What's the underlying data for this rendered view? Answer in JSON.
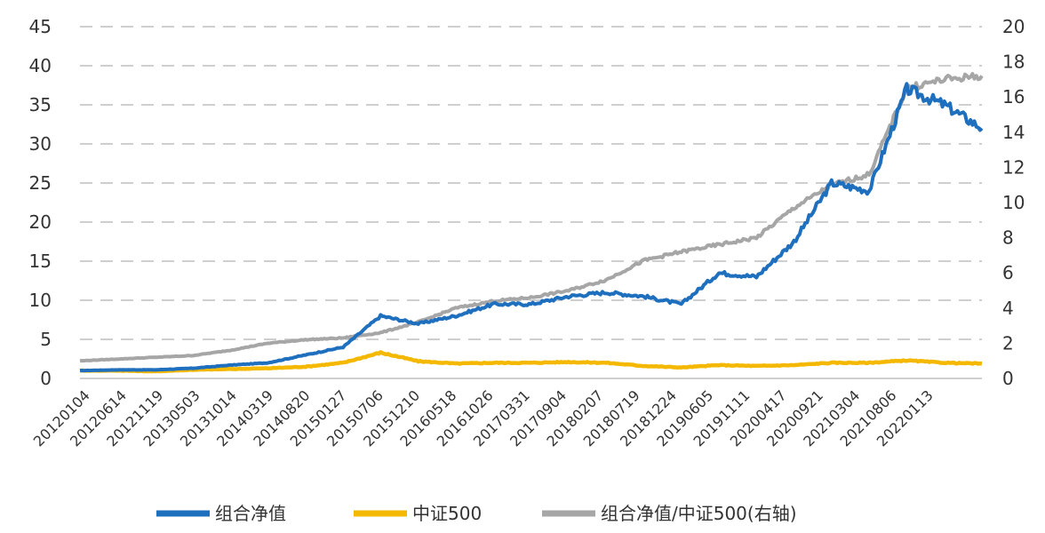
{
  "chart_data": {
    "type": "line",
    "title": "",
    "xlabel": "",
    "ylabel": "",
    "y2label": "",
    "ylim": [
      0,
      45
    ],
    "y2lim": [
      0,
      20
    ],
    "y_ticks": [
      0,
      5,
      10,
      15,
      20,
      25,
      30,
      35,
      40,
      45
    ],
    "y2_ticks": [
      0,
      2,
      4,
      6,
      8,
      10,
      12,
      14,
      16,
      18,
      20
    ],
    "grid": "horizontal dashed",
    "legend_position": "bottom",
    "x_tick_labels": [
      "20120104",
      "20120614",
      "20121119",
      "20130503",
      "20131014",
      "20140319",
      "20140820",
      "20150127",
      "20150706",
      "20151210",
      "20160518",
      "20161026",
      "20170331",
      "20170904",
      "20180207",
      "20180719",
      "20181224",
      "20190605",
      "20191111",
      "20200417",
      "20200921",
      "20210304",
      "20210806",
      "20220113"
    ],
    "x": [
      "20120104",
      "20120614",
      "20121119",
      "20130503",
      "20131014",
      "20140319",
      "20140820",
      "20150127",
      "20150706",
      "20151210",
      "20160518",
      "20161026",
      "20170331",
      "20170904",
      "20180207",
      "20180719",
      "20181224",
      "20190605",
      "20191111",
      "20200417",
      "20200921",
      "20210304",
      "20210806",
      "20220113",
      "20220420"
    ],
    "series": [
      {
        "name": "组合净值",
        "axis": "left",
        "color": "#1f6fbf",
        "values": [
          1.0,
          1.1,
          1.1,
          1.3,
          1.7,
          2.0,
          3.0,
          4.0,
          8.0,
          7.0,
          8.0,
          9.5,
          9.5,
          10.5,
          11.0,
          10.5,
          9.5,
          13.5,
          13.0,
          17.5,
          25.0,
          24.0,
          37.0,
          35.0,
          32.0
        ]
      },
      {
        "name": "中证500",
        "axis": "left",
        "color": "#f5b800",
        "values": [
          1.0,
          1.0,
          0.9,
          1.1,
          1.2,
          1.3,
          1.5,
          2.0,
          3.3,
          2.2,
          1.9,
          2.0,
          2.0,
          2.1,
          2.0,
          1.6,
          1.4,
          1.7,
          1.6,
          1.7,
          2.0,
          2.0,
          2.3,
          2.0,
          1.9
        ]
      },
      {
        "name": "组合净值/中证500(右轴)",
        "axis": "right",
        "color": "#a6a6a6",
        "values": [
          1.0,
          1.1,
          1.2,
          1.3,
          1.6,
          2.0,
          2.2,
          2.3,
          2.6,
          3.2,
          4.0,
          4.4,
          4.6,
          5.0,
          5.6,
          6.7,
          7.2,
          7.6,
          8.0,
          9.7,
          11.0,
          11.6,
          16.5,
          17.0,
          17.2
        ]
      }
    ]
  }
}
